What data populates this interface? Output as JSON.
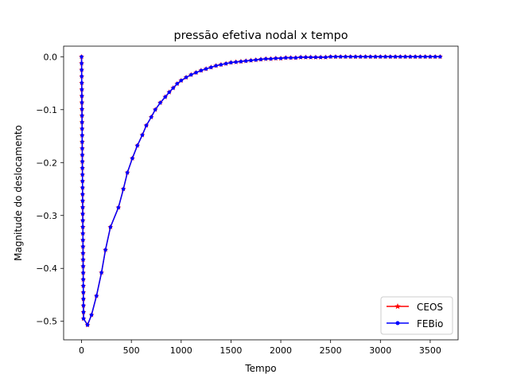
{
  "chart_data": {
    "type": "line",
    "title": "pressão efetiva nodal x tempo",
    "xlabel": "Tempo",
    "ylabel": "Magnitude do deslocamento",
    "xlim": [
      -180,
      3780
    ],
    "ylim": [
      -0.535,
      0.02
    ],
    "xticks": [
      0,
      500,
      1000,
      1500,
      2000,
      2500,
      3000,
      3500
    ],
    "xtick_labels": [
      "0",
      "500",
      "1000",
      "1500",
      "2000",
      "2500",
      "3000",
      "3500"
    ],
    "yticks": [
      0.0,
      -0.1,
      -0.2,
      -0.3,
      -0.4,
      -0.5
    ],
    "ytick_labels": [
      "0.0",
      "−0.1",
      "−0.2",
      "−0.3",
      "−0.4",
      "−0.5"
    ],
    "grid": false,
    "legend_position": "bottom-right",
    "x": [
      0,
      0.5,
      1,
      1.5,
      2,
      2.5,
      3,
      3.5,
      4,
      4.5,
      5,
      5.5,
      6,
      6.5,
      7,
      7.5,
      8,
      8.5,
      9,
      9.5,
      10,
      10.5,
      11,
      11.5,
      12,
      12.5,
      13,
      13.5,
      14,
      14.5,
      15,
      15.5,
      16,
      16.5,
      17,
      17.5,
      18,
      18.5,
      19,
      19.5,
      20,
      60,
      100,
      150,
      200,
      240,
      290,
      370,
      420,
      460,
      510,
      560,
      610,
      650,
      700,
      740,
      790,
      840,
      880,
      920,
      960,
      1000,
      1050,
      1100,
      1150,
      1200,
      1250,
      1300,
      1350,
      1400,
      1450,
      1500,
      1550,
      1600,
      1650,
      1700,
      1750,
      1800,
      1850,
      1900,
      1950,
      2000,
      2050,
      2100,
      2150,
      2200,
      2250,
      2300,
      2350,
      2400,
      2450,
      2500,
      2550,
      2600,
      2650,
      2700,
      2750,
      2800,
      2850,
      2900,
      2950,
      3000,
      3050,
      3100,
      3150,
      3200,
      3250,
      3300,
      3350,
      3400,
      3450,
      3500,
      3550,
      3600
    ],
    "series": [
      {
        "name": "CEOS",
        "color": "#ff0000",
        "marker": "star",
        "values": [
          0.0,
          -0.0124,
          -0.0248,
          -0.0371,
          -0.0495,
          -0.0619,
          -0.0743,
          -0.0866,
          -0.099,
          -0.1114,
          -0.1238,
          -0.1361,
          -0.1485,
          -0.1609,
          -0.1733,
          -0.1856,
          -0.198,
          -0.2104,
          -0.2228,
          -0.2351,
          -0.2475,
          -0.2599,
          -0.2723,
          -0.2846,
          -0.297,
          -0.3094,
          -0.3218,
          -0.3341,
          -0.3465,
          -0.3589,
          -0.3713,
          -0.3836,
          -0.396,
          -0.4084,
          -0.4208,
          -0.4331,
          -0.4455,
          -0.4579,
          -0.4703,
          -0.4826,
          -0.495,
          -0.507,
          -0.488,
          -0.452,
          -0.408,
          -0.365,
          -0.322,
          -0.285,
          -0.25,
          -0.219,
          -0.192,
          -0.168,
          -0.148,
          -0.13,
          -0.114,
          -0.1,
          -0.087,
          -0.076,
          -0.067,
          -0.059,
          -0.051,
          -0.045,
          -0.039,
          -0.034,
          -0.03,
          -0.026,
          -0.023,
          -0.02,
          -0.017,
          -0.015,
          -0.013,
          -0.011,
          -0.01,
          -0.009,
          -0.008,
          -0.007,
          -0.006,
          -0.005,
          -0.004,
          -0.004,
          -0.003,
          -0.003,
          -0.002,
          -0.002,
          -0.002,
          -0.001,
          -0.001,
          -0.001,
          -0.001,
          -0.001,
          -0.001,
          0.0,
          0.0,
          0.0,
          0.0,
          0.0,
          0.0,
          0.0,
          0.0,
          0.0,
          0.0,
          0.0,
          0.0,
          0.0,
          0.0,
          0.0,
          0.0,
          0.0,
          0.0,
          0.0,
          0.0,
          0.0,
          0.0,
          0.0
        ]
      },
      {
        "name": "FEBio",
        "color": "#0000ff",
        "marker": "dot",
        "values": [
          0.0,
          -0.0124,
          -0.0248,
          -0.0371,
          -0.0495,
          -0.0619,
          -0.0743,
          -0.0866,
          -0.099,
          -0.1114,
          -0.1238,
          -0.1361,
          -0.1485,
          -0.1609,
          -0.1733,
          -0.1856,
          -0.198,
          -0.2104,
          -0.2228,
          -0.2351,
          -0.2475,
          -0.2599,
          -0.2723,
          -0.2846,
          -0.297,
          -0.3094,
          -0.3218,
          -0.3341,
          -0.3465,
          -0.3589,
          -0.3713,
          -0.3836,
          -0.396,
          -0.4084,
          -0.4208,
          -0.4331,
          -0.4455,
          -0.4579,
          -0.4703,
          -0.4826,
          -0.495,
          -0.507,
          -0.488,
          -0.452,
          -0.408,
          -0.365,
          -0.322,
          -0.285,
          -0.25,
          -0.219,
          -0.192,
          -0.168,
          -0.148,
          -0.13,
          -0.114,
          -0.1,
          -0.087,
          -0.076,
          -0.067,
          -0.059,
          -0.051,
          -0.045,
          -0.039,
          -0.034,
          -0.03,
          -0.026,
          -0.023,
          -0.02,
          -0.017,
          -0.015,
          -0.013,
          -0.011,
          -0.01,
          -0.009,
          -0.008,
          -0.007,
          -0.006,
          -0.005,
          -0.004,
          -0.004,
          -0.003,
          -0.003,
          -0.002,
          -0.002,
          -0.002,
          -0.001,
          -0.001,
          -0.001,
          -0.001,
          -0.001,
          -0.001,
          0.0,
          0.0,
          0.0,
          0.0,
          0.0,
          0.0,
          0.0,
          0.0,
          0.0,
          0.0,
          0.0,
          0.0,
          0.0,
          0.0,
          0.0,
          0.0,
          0.0,
          0.0,
          0.0,
          0.0,
          0.0,
          0.0,
          0.0
        ]
      }
    ]
  }
}
